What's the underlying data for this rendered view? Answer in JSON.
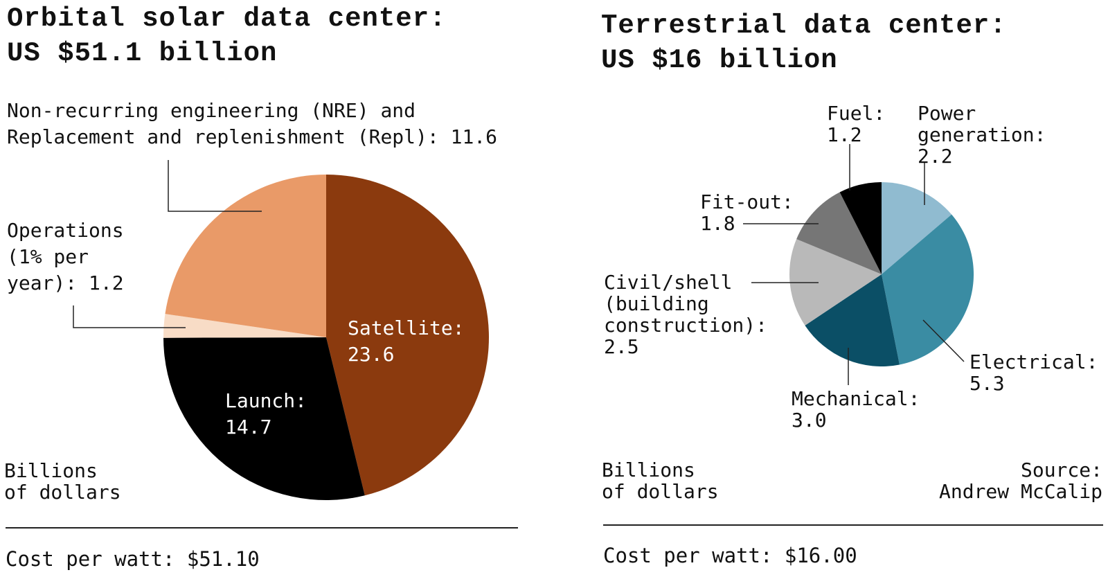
{
  "chart_data": [
    {
      "type": "pie",
      "title": "Orbital solar data center:",
      "subtitle": "US $51.1 billion",
      "unit_note": [
        "Billions",
        "of dollars"
      ],
      "cost_per_watt": "Cost per watt: $51.10",
      "slices": [
        {
          "label": "Satellite:",
          "value": 23.6,
          "value_text": "23.6",
          "color": "#8B3A0E"
        },
        {
          "label": "Launch:",
          "value": 14.7,
          "value_text": "14.7",
          "color": "#000000"
        },
        {
          "label": "Operations (1% per year):",
          "value": 1.2,
          "value_text": "1.2",
          "color": "#F8DCC6"
        },
        {
          "label": "Non-recurring engineering (NRE) and Replacement and replenishment (Repl):",
          "value": 11.6,
          "value_text": "11.6",
          "color": "#E99A68"
        }
      ]
    },
    {
      "type": "pie",
      "title": "Terrestrial data center:",
      "subtitle": "US $16 billion",
      "unit_note": [
        "Billions",
        "of dollars"
      ],
      "source": [
        "Source:",
        "Andrew McCalip"
      ],
      "cost_per_watt": "Cost per watt: $16.00",
      "slices": [
        {
          "label": "Power generation:",
          "value": 2.2,
          "value_text": "2.2",
          "color": "#90BBD0"
        },
        {
          "label": "Electrical:",
          "value": 5.3,
          "value_text": "5.3",
          "color": "#3A8CA3"
        },
        {
          "label": "Mechanical:",
          "value": 3.0,
          "value_text": "3.0",
          "color": "#0B4F66"
        },
        {
          "label": "Civil/shell (building construction):",
          "value": 2.5,
          "value_text": "2.5",
          "color": "#B9B9B9"
        },
        {
          "label": "Fit-out:",
          "value": 1.8,
          "value_text": "1.8",
          "color": "#767676"
        },
        {
          "label": "Fuel:",
          "value": 1.2,
          "value_text": "1.2",
          "color": "#000000"
        }
      ]
    }
  ],
  "left_labels": {
    "nre_line1": "Non-recurring engineering (NRE) and",
    "nre_line2": "Replacement and replenishment (Repl): 11.6",
    "ops_line1": "Operations",
    "ops_line2": "(1% per",
    "ops_line3": "year): 1.2",
    "sat_line1": "Satellite:",
    "sat_line2": "23.6",
    "launch_line1": "Launch:",
    "launch_line2": "14.7"
  },
  "right_labels": {
    "fuel_line1": "Fuel:",
    "fuel_line2": "1.2",
    "power_line1": "Power",
    "power_line2": "generation:",
    "power_line3": "2.2",
    "fit_line1": "Fit-out:",
    "fit_line2": "1.8",
    "civil_line1": "Civil/shell",
    "civil_line2": "(building",
    "civil_line3": "construction):",
    "civil_line4": "2.5",
    "elec_line1": "Electrical:",
    "elec_line2": "5.3",
    "mech_line1": "Mechanical:",
    "mech_line2": "3.0"
  }
}
